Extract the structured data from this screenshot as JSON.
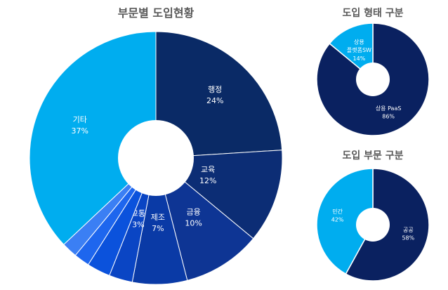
{
  "chart_data": [
    {
      "type": "pie",
      "title": "부문별 도입현황",
      "slices": [
        {
          "label": "행정",
          "value": 24,
          "value_text": "24%",
          "color": "#0a2a66"
        },
        {
          "label": "교육",
          "value": 12,
          "value_text": "12%",
          "color": "#0c2d75"
        },
        {
          "label": "금융",
          "value": 10,
          "value_text": "10%",
          "color": "#0e3594"
        },
        {
          "label": "제조",
          "value": 7,
          "value_text": "7%",
          "color": "#0a3aa6"
        },
        {
          "label": "교통",
          "value": 3,
          "value_text": "3%",
          "color": "#0a45c4"
        },
        {
          "label": "",
          "value": 3,
          "value_text": "",
          "color": "#0b52dc"
        },
        {
          "label": "",
          "value": 2,
          "value_text": "",
          "color": "#1e66ee"
        },
        {
          "label": "",
          "value": 2,
          "value_text": "",
          "color": "#3b7ff4"
        },
        {
          "label": "기타",
          "value": 37,
          "value_text": "37%",
          "color": "#00adef"
        }
      ]
    },
    {
      "type": "pie",
      "title": "도입 형태 구분",
      "slices": [
        {
          "label": "상용 PaaS",
          "value": 86,
          "value_text": "86%",
          "color": "#0a2160"
        },
        {
          "label": "상용\n플랫폼SW",
          "value": 14,
          "value_text": "14%",
          "color": "#00adef"
        }
      ]
    },
    {
      "type": "pie",
      "title": "도입 부문 구분",
      "slices": [
        {
          "label": "공공",
          "value": 58,
          "value_text": "58%",
          "color": "#0a2160"
        },
        {
          "label": "민간",
          "value": 42,
          "value_text": "42%",
          "color": "#00adef"
        }
      ]
    }
  ]
}
